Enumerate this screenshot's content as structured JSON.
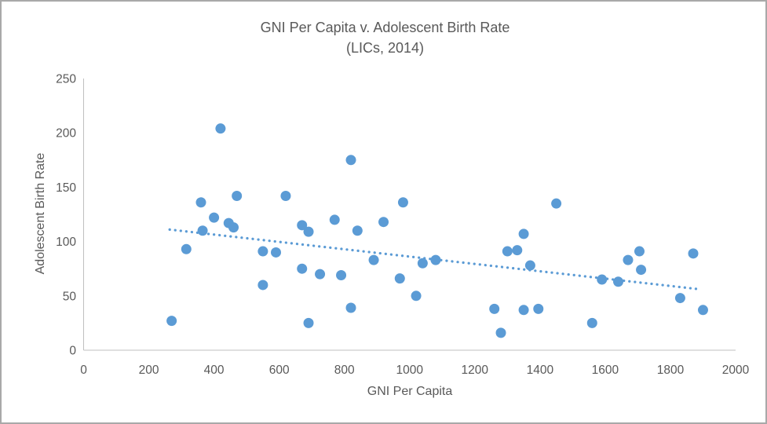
{
  "window": {
    "background": "#ffffff",
    "border_color": "#a9a9a9"
  },
  "colors": {
    "marker": "#5B9BD5",
    "trendline": "#5B9BD5",
    "axis_line": "#BFBFBF",
    "text": "#595959"
  },
  "chart_data": {
    "type": "scatter",
    "title": "GNI Per Capita v. Adolescent Birth Rate",
    "subtitle": "(LICs, 2014)",
    "xlabel": "GNI Per Capita",
    "ylabel": "Adolescent Birth Rate",
    "xlim": [
      0,
      2000
    ],
    "ylim": [
      0,
      250
    ],
    "x_ticks": [
      0,
      200,
      400,
      600,
      800,
      1000,
      1200,
      1400,
      1600,
      1800,
      2000
    ],
    "y_ticks": [
      0,
      50,
      100,
      150,
      200,
      250
    ],
    "grid": false,
    "legend": false,
    "marker_radius_px": 6.5,
    "points": [
      [
        270,
        27
      ],
      [
        315,
        93
      ],
      [
        360,
        136
      ],
      [
        365,
        110
      ],
      [
        400,
        122
      ],
      [
        420,
        204
      ],
      [
        445,
        117
      ],
      [
        460,
        113
      ],
      [
        470,
        142
      ],
      [
        550,
        60
      ],
      [
        550,
        91
      ],
      [
        590,
        90
      ],
      [
        620,
        142
      ],
      [
        670,
        75
      ],
      [
        670,
        115
      ],
      [
        690,
        25
      ],
      [
        690,
        109
      ],
      [
        725,
        70
      ],
      [
        770,
        120
      ],
      [
        790,
        69
      ],
      [
        820,
        39
      ],
      [
        820,
        175
      ],
      [
        840,
        110
      ],
      [
        890,
        83
      ],
      [
        920,
        118
      ],
      [
        970,
        66
      ],
      [
        980,
        136
      ],
      [
        1020,
        50
      ],
      [
        1040,
        80
      ],
      [
        1080,
        83
      ],
      [
        1260,
        38
      ],
      [
        1280,
        16
      ],
      [
        1300,
        91
      ],
      [
        1330,
        92
      ],
      [
        1350,
        37
      ],
      [
        1350,
        107
      ],
      [
        1370,
        78
      ],
      [
        1395,
        38
      ],
      [
        1450,
        135
      ],
      [
        1560,
        25
      ],
      [
        1590,
        65
      ],
      [
        1640,
        63
      ],
      [
        1670,
        83
      ],
      [
        1705,
        91
      ],
      [
        1710,
        74
      ],
      [
        1830,
        48
      ],
      [
        1870,
        89
      ],
      [
        1900,
        37
      ]
    ],
    "trendline": {
      "style": "dotted",
      "x_start": 264,
      "y_start": 111,
      "x_end": 1892,
      "y_end": 56
    }
  }
}
